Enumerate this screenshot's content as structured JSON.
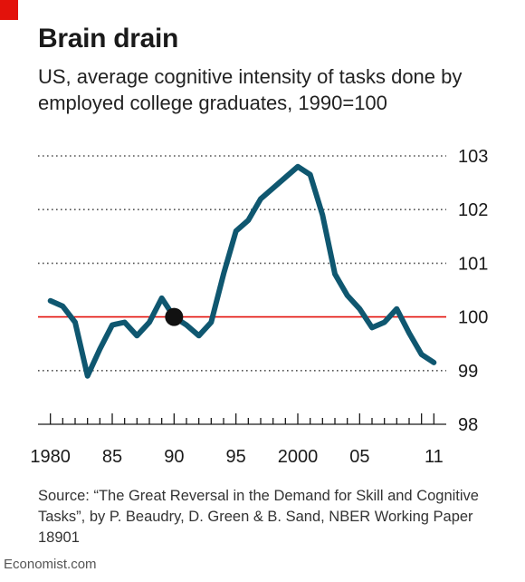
{
  "header": {
    "title": "Brain drain",
    "subtitle": "US, average cognitive intensity of tasks done by employed college graduates, 1990=100"
  },
  "footer": {
    "source": "Source: “The Great Reversal in the Demand for Skill and Cognitive Tasks”, by P. Beaudry, D. Green & B. Sand, NBER Working Paper 18901",
    "brand": "Economist.com"
  },
  "colors": {
    "line": "#0f5770",
    "reference": "#e3120b",
    "accent": "#e3120b",
    "grid": "#555555",
    "marker": "#111111"
  },
  "chart_data": {
    "type": "line",
    "title": "Brain drain",
    "subtitle": "US, average cognitive intensity of tasks done by employed college graduates, 1990=100",
    "x": [
      1980,
      1981,
      1982,
      1983,
      1984,
      1985,
      1986,
      1987,
      1988,
      1989,
      1990,
      1991,
      1992,
      1993,
      1994,
      1995,
      1996,
      1997,
      1998,
      1999,
      2000,
      2001,
      2002,
      2003,
      2004,
      2005,
      2006,
      2007,
      2008,
      2009,
      2010,
      2011
    ],
    "series": [
      {
        "values": [
          100.3,
          100.2,
          99.9,
          98.9,
          99.4,
          99.85,
          99.9,
          99.65,
          99.9,
          100.35,
          100.0,
          99.85,
          99.65,
          99.9,
          100.8,
          101.6,
          101.8,
          102.2,
          102.4,
          102.6,
          102.8,
          102.65,
          101.9,
          100.8,
          100.4,
          100.15,
          99.8,
          99.9,
          100.15,
          99.7,
          99.3,
          99.15
        ]
      }
    ],
    "reference_line": 100,
    "highlight_point": {
      "x": 1990,
      "y": 100
    },
    "xlim": [
      1979,
      2012
    ],
    "ylim": [
      98,
      103
    ],
    "x_tick_labels": [
      {
        "x": 1980,
        "label": "1980"
      },
      {
        "x": 1985,
        "label": "85"
      },
      {
        "x": 1990,
        "label": "90"
      },
      {
        "x": 1995,
        "label": "95"
      },
      {
        "x": 2000,
        "label": "2000"
      },
      {
        "x": 2005,
        "label": "05"
      },
      {
        "x": 2011,
        "label": "11"
      }
    ],
    "y_ticks": [
      98,
      99,
      100,
      101,
      102,
      103
    ],
    "y_tick_labels": [
      "98",
      "99",
      "100",
      "101",
      "102",
      "103"
    ],
    "grid": "horizontal-dotted",
    "y_axis_position": "right"
  }
}
